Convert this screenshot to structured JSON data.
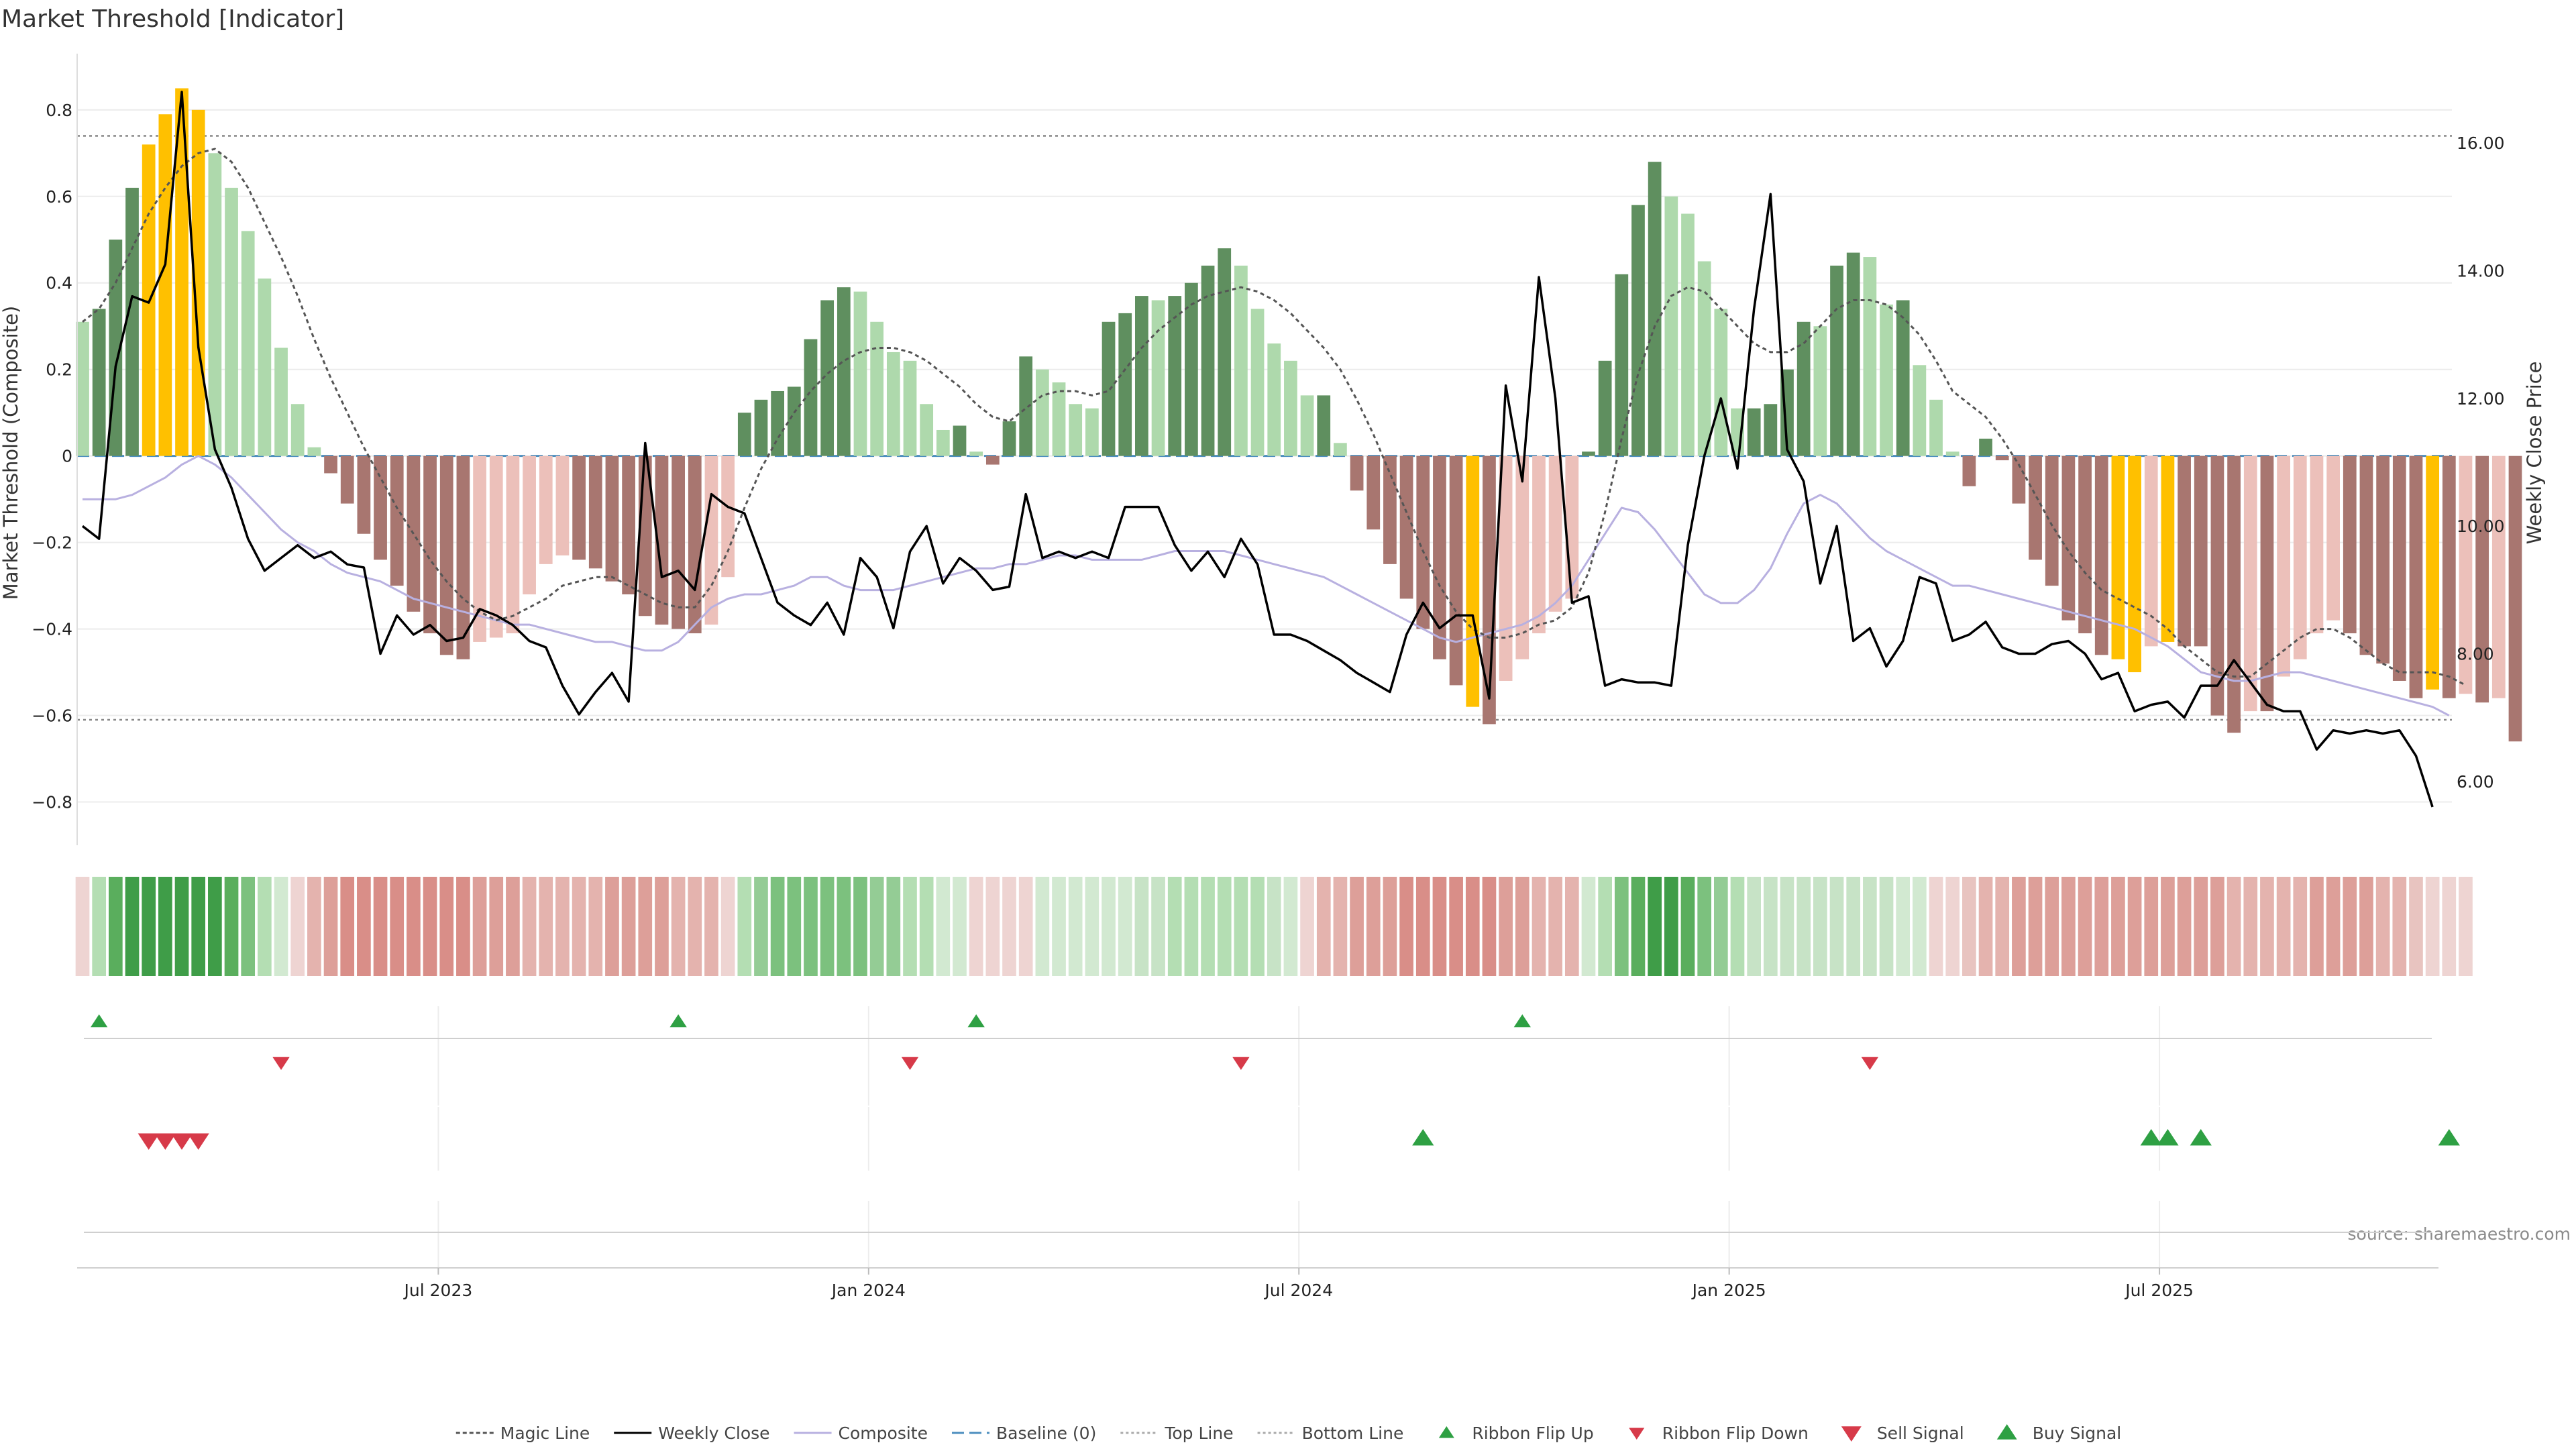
{
  "title": "Market Threshold [Indicator]",
  "source": "source: sharemaestro.com",
  "chart_data": {
    "type": "bar",
    "x_tick_labels": [
      "Jul 2023",
      "Jan 2024",
      "Jul 2024",
      "Jan 2025",
      "Jul 2025"
    ],
    "x_tick_weeks": [
      21.5,
      47.5,
      73.5,
      99.5,
      125.5
    ],
    "weeks_count": 143,
    "left_axis": {
      "label": "Market Threshold (Composite)",
      "ticks": [
        0.8,
        0.6,
        0.4,
        0.2,
        0,
        -0.2,
        -0.4,
        -0.6,
        -0.8
      ],
      "tick_labels": [
        "0.8",
        "0.6",
        "0.4",
        "0.2",
        "0",
        "−0.2",
        "−0.4",
        "−0.6",
        "−0.8"
      ],
      "ylim": [
        -0.9,
        0.93
      ]
    },
    "right_axis": {
      "label": "Weekly Close Price",
      "ticks": [
        16,
        14,
        12,
        10,
        8,
        6
      ],
      "tick_labels": [
        "16.00",
        "14.00",
        "12.00",
        "10.00",
        "8.00",
        "6.00"
      ],
      "ylim": [
        5.0,
        17.4
      ]
    },
    "top_line": 0.74,
    "bottom_line": -0.61,
    "grid": true,
    "legend_position": "bottom",
    "colors": {
      "dark_green": "#5f8f5f",
      "light_green": "#aed9ac",
      "dark_red": "#a87670",
      "light_red": "#ecc0ba",
      "extreme": "#ffc000",
      "magic": "#555555",
      "close": "#000000",
      "composite": "#b8b0e0",
      "baseline": "#4d8fbf",
      "buy": "#2ea043",
      "sell": "#d73a49"
    },
    "composite_bars": [
      0.31,
      0.34,
      0.5,
      0.62,
      0.72,
      0.79,
      0.85,
      0.8,
      0.7,
      0.62,
      0.52,
      0.41,
      0.25,
      0.12,
      0.02,
      -0.04,
      -0.11,
      -0.18,
      -0.24,
      -0.3,
      -0.36,
      -0.41,
      -0.46,
      -0.47,
      -0.43,
      -0.42,
      -0.41,
      -0.32,
      -0.25,
      -0.23,
      -0.24,
      -0.26,
      -0.29,
      -0.32,
      -0.37,
      -0.39,
      -0.4,
      -0.41,
      -0.39,
      -0.28,
      0.1,
      0.13,
      0.15,
      0.16,
      0.27,
      0.36,
      0.39,
      0.38,
      0.31,
      0.24,
      0.22,
      0.12,
      0.06,
      0.07,
      0.01,
      -0.02,
      0.08,
      0.23,
      0.2,
      0.17,
      0.12,
      0.11,
      0.31,
      0.33,
      0.37,
      0.36,
      0.37,
      0.4,
      0.44,
      0.48,
      0.44,
      0.34,
      0.26,
      0.22,
      0.14,
      0.14,
      0.03,
      -0.08,
      -0.17,
      -0.25,
      -0.33,
      -0.4,
      -0.47,
      -0.53,
      -0.58,
      -0.62,
      -0.52,
      -0.47,
      -0.41,
      -0.36,
      -0.33,
      0.01,
      0.22,
      0.42,
      0.58,
      0.68,
      0.6,
      0.56,
      0.45,
      0.34,
      0.11,
      0.11,
      0.12,
      0.2,
      0.31,
      0.3,
      0.44,
      0.47,
      0.46,
      0.35,
      0.36,
      0.21,
      0.13,
      0.01,
      -0.07,
      0.04,
      -0.01,
      -0.11,
      -0.24,
      -0.3,
      -0.38,
      -0.41,
      -0.46,
      -0.47,
      -0.5,
      -0.44,
      -0.43,
      -0.44,
      -0.44,
      -0.6,
      -0.64,
      -0.59,
      -0.59,
      -0.51,
      -0.47,
      -0.41,
      -0.38,
      -0.41,
      -0.46,
      -0.48,
      -0.52,
      -0.56,
      -0.54,
      -0.56,
      -0.55,
      -0.57,
      -0.56,
      -0.66
    ],
    "extreme_weeks": [
      4,
      5,
      6,
      7,
      84,
      123,
      124,
      126,
      142
    ],
    "weekly_close": [
      10.0,
      9.8,
      12.5,
      13.6,
      13.5,
      14.1,
      16.8,
      12.8,
      11.2,
      10.6,
      9.8,
      9.3,
      9.5,
      9.7,
      9.5,
      9.6,
      9.4,
      9.35,
      8.0,
      8.6,
      8.3,
      8.45,
      8.2,
      8.25,
      8.7,
      8.6,
      8.45,
      8.2,
      8.1,
      7.5,
      7.05,
      7.4,
      7.7,
      7.25,
      11.3,
      9.2,
      9.3,
      9.0,
      10.5,
      10.3,
      10.2,
      9.5,
      8.8,
      8.6,
      8.45,
      8.8,
      8.3,
      9.5,
      9.2,
      8.4,
      9.6,
      10.0,
      9.1,
      9.5,
      9.3,
      9.0,
      9.05,
      10.5,
      9.5,
      9.6,
      9.5,
      9.6,
      9.5,
      10.3,
      10.3,
      10.3,
      9.7,
      9.3,
      9.6,
      9.2,
      9.8,
      9.4,
      8.3,
      8.3,
      8.2,
      8.05,
      7.9,
      7.7,
      7.55,
      7.4,
      8.3,
      8.8,
      8.4,
      8.6,
      8.6,
      7.3,
      12.2,
      10.7,
      13.9,
      12.0,
      8.8,
      8.9,
      7.5,
      7.6,
      7.55,
      7.55,
      7.5,
      9.7,
      11.1,
      12.0,
      10.9,
      13.4,
      15.2,
      11.2,
      10.7,
      9.1,
      10.0,
      8.2,
      8.4,
      7.8,
      8.2,
      9.2,
      9.1,
      8.2,
      8.3,
      8.5,
      8.1,
      8.0,
      8.0,
      8.15,
      8.2,
      8.0,
      7.6,
      7.7,
      7.1,
      7.2,
      7.25,
      7.0,
      7.5,
      7.5,
      7.9,
      7.55,
      7.2,
      7.1,
      7.1,
      6.5,
      6.8,
      6.75,
      6.8,
      6.75,
      6.8,
      6.4,
      5.6
    ],
    "composite_line": [
      -0.1,
      -0.1,
      -0.1,
      -0.09,
      -0.07,
      -0.05,
      -0.02,
      0,
      -0.02,
      -0.05,
      -0.09,
      -0.13,
      -0.17,
      -0.2,
      -0.22,
      -0.25,
      -0.27,
      -0.28,
      -0.29,
      -0.31,
      -0.33,
      -0.34,
      -0.35,
      -0.36,
      -0.37,
      -0.38,
      -0.39,
      -0.39,
      -0.4,
      -0.41,
      -0.42,
      -0.43,
      -0.43,
      -0.44,
      -0.45,
      -0.45,
      -0.43,
      -0.39,
      -0.35,
      -0.33,
      -0.32,
      -0.32,
      -0.31,
      -0.3,
      -0.28,
      -0.28,
      -0.3,
      -0.31,
      -0.31,
      -0.31,
      -0.3,
      -0.29,
      -0.28,
      -0.27,
      -0.26,
      -0.26,
      -0.25,
      -0.25,
      -0.24,
      -0.23,
      -0.23,
      -0.24,
      -0.24,
      -0.24,
      -0.24,
      -0.23,
      -0.22,
      -0.22,
      -0.22,
      -0.22,
      -0.23,
      -0.24,
      -0.25,
      -0.26,
      -0.27,
      -0.28,
      -0.3,
      -0.32,
      -0.34,
      -0.36,
      -0.38,
      -0.4,
      -0.42,
      -0.43,
      -0.42,
      -0.41,
      -0.4,
      -0.39,
      -0.37,
      -0.34,
      -0.3,
      -0.24,
      -0.18,
      -0.12,
      -0.13,
      -0.17,
      -0.22,
      -0.27,
      -0.32,
      -0.34,
      -0.34,
      -0.31,
      -0.26,
      -0.18,
      -0.11,
      -0.09,
      -0.11,
      -0.15,
      -0.19,
      -0.22,
      -0.24,
      -0.26,
      -0.28,
      -0.3,
      -0.3,
      -0.31,
      -0.32,
      -0.33,
      -0.34,
      -0.35,
      -0.36,
      -0.37,
      -0.38,
      -0.39,
      -0.4,
      -0.42,
      -0.44,
      -0.47,
      -0.5,
      -0.51,
      -0.52,
      -0.52,
      -0.51,
      -0.5,
      -0.5,
      -0.51,
      -0.52,
      -0.53,
      -0.54,
      -0.55,
      -0.56,
      -0.57,
      -0.58,
      -0.6
    ],
    "magic_line": [
      0.31,
      0.34,
      0.4,
      0.48,
      0.56,
      0.62,
      0.67,
      0.7,
      0.71,
      0.68,
      0.62,
      0.54,
      0.46,
      0.37,
      0.27,
      0.18,
      0.1,
      0.02,
      -0.05,
      -0.12,
      -0.18,
      -0.24,
      -0.29,
      -0.33,
      -0.36,
      -0.38,
      -0.37,
      -0.35,
      -0.33,
      -0.3,
      -0.29,
      -0.28,
      -0.28,
      -0.3,
      -0.32,
      -0.34,
      -0.35,
      -0.35,
      -0.3,
      -0.22,
      -0.12,
      -0.03,
      0.04,
      0.1,
      0.15,
      0.19,
      0.22,
      0.24,
      0.25,
      0.25,
      0.24,
      0.22,
      0.19,
      0.16,
      0.12,
      0.09,
      0.08,
      0.11,
      0.14,
      0.15,
      0.15,
      0.14,
      0.15,
      0.2,
      0.25,
      0.29,
      0.32,
      0.35,
      0.37,
      0.38,
      0.39,
      0.38,
      0.36,
      0.33,
      0.29,
      0.25,
      0.2,
      0.13,
      0.05,
      -0.04,
      -0.13,
      -0.22,
      -0.3,
      -0.36,
      -0.4,
      -0.42,
      -0.42,
      -0.41,
      -0.39,
      -0.38,
      -0.35,
      -0.27,
      -0.13,
      0.04,
      0.19,
      0.3,
      0.37,
      0.39,
      0.38,
      0.34,
      0.3,
      0.26,
      0.24,
      0.24,
      0.26,
      0.3,
      0.34,
      0.36,
      0.36,
      0.35,
      0.32,
      0.28,
      0.22,
      0.15,
      0.12,
      0.09,
      0.04,
      -0.02,
      -0.09,
      -0.16,
      -0.22,
      -0.27,
      -0.31,
      -0.33,
      -0.35,
      -0.37,
      -0.4,
      -0.44,
      -0.47,
      -0.5,
      -0.51,
      -0.51,
      -0.48,
      -0.45,
      -0.42,
      -0.4,
      -0.4,
      -0.42,
      -0.45,
      -0.48,
      -0.5,
      -0.5,
      -0.5,
      -0.51,
      -0.53
    ],
    "ribbon_colors": [
      "#eed4d2",
      "#b4deb3",
      "#5aae5d",
      "#3f9d48",
      "#3f9d48",
      "#3f9d48",
      "#3f9d48",
      "#3f9d48",
      "#3f9d48",
      "#5aae5d",
      "#7cc17e",
      "#b4deb3",
      "#d2e9d1",
      "#eed4d2",
      "#e4b3ae",
      "#dd9f99",
      "#d98e88",
      "#d98e88",
      "#d98e88",
      "#d98e88",
      "#d98e88",
      "#d98e88",
      "#d98e88",
      "#d98e88",
      "#dd9f99",
      "#dd9f99",
      "#dd9f99",
      "#e4b3ae",
      "#e4b3ae",
      "#e4b3ae",
      "#e4b3ae",
      "#e4b3ae",
      "#dd9f99",
      "#dd9f99",
      "#dd9f99",
      "#dd9f99",
      "#e4b3ae",
      "#e4b3ae",
      "#e4b3ae",
      "#eed4d2",
      "#b4deb3",
      "#94cc95",
      "#7cc17e",
      "#7cc17e",
      "#7cc17e",
      "#7cc17e",
      "#7cc17e",
      "#7cc17e",
      "#94cc95",
      "#94cc95",
      "#b4deb3",
      "#b4deb3",
      "#d2e9d1",
      "#d2e9d1",
      "#eed4d2",
      "#eed4d2",
      "#eed4d2",
      "#eed4d2",
      "#d2e9d1",
      "#d2e9d1",
      "#d2e9d1",
      "#d2e9d1",
      "#d2e9d1",
      "#d2e9d1",
      "#c7e3c6",
      "#c7e3c6",
      "#b4deb3",
      "#b4deb3",
      "#b4deb3",
      "#b4deb3",
      "#b4deb3",
      "#b4deb3",
      "#c7e3c6",
      "#d2e9d1",
      "#eed4d2",
      "#e4b3ae",
      "#e4b3ae",
      "#dd9f99",
      "#dd9f99",
      "#dd9f99",
      "#d98e88",
      "#d98e88",
      "#d98e88",
      "#d98e88",
      "#d98e88",
      "#d98e88",
      "#dd9f99",
      "#dd9f99",
      "#e4b3ae",
      "#e4b3ae",
      "#e4b3ae",
      "#d2e9d1",
      "#b4deb3",
      "#7cc17e",
      "#5aae5d",
      "#3f9d48",
      "#3f9d48",
      "#5aae5d",
      "#7cc17e",
      "#94cc95",
      "#b4deb3",
      "#c7e3c6",
      "#c7e3c6",
      "#c7e3c6",
      "#c7e3c6",
      "#c7e3c6",
      "#c7e3c6",
      "#c7e3c6",
      "#c7e3c6",
      "#c7e3c6",
      "#d2e9d1",
      "#d2e9d1",
      "#eed4d2",
      "#eed4d2",
      "#e8c4c0",
      "#e4b3ae",
      "#e4b3ae",
      "#dd9f99",
      "#dd9f99",
      "#dd9f99",
      "#dd9f99",
      "#dd9f99",
      "#dd9f99",
      "#dd9f99",
      "#dd9f99",
      "#dd9f99",
      "#dd9f99",
      "#dd9f99",
      "#dd9f99",
      "#dd9f99",
      "#e4b3ae",
      "#e4b3ae",
      "#e4b3ae",
      "#e4b3ae",
      "#e4b3ae",
      "#dd9f99",
      "#dd9f99",
      "#dd9f99",
      "#dd9f99",
      "#e4b3ae",
      "#e4b3ae",
      "#e8c4c0",
      "#eed4d2",
      "#eed4d2",
      "#eed4d2"
    ],
    "ribbon_flip_up_weeks": [
      1,
      36,
      54,
      87
    ],
    "ribbon_flip_down_weeks": [
      12,
      50,
      70,
      108
    ],
    "sell_signal_weeks": [
      4,
      5,
      6,
      7
    ],
    "buy_signal_weeks": [
      81,
      125,
      126,
      128,
      143
    ]
  },
  "legend": [
    {
      "label": "Magic Line",
      "marker": "line",
      "color": "#555555",
      "dash": "6,4"
    },
    {
      "label": "Weekly Close",
      "marker": "line",
      "color": "#000000",
      "dash": ""
    },
    {
      "label": "Composite",
      "marker": "line",
      "color": "#b8b0e0",
      "dash": ""
    },
    {
      "label": "Baseline (0)",
      "marker": "line",
      "color": "#4d8fbf",
      "dash": "18,8"
    },
    {
      "label": "Top Line",
      "marker": "line",
      "color": "#aaaaaa",
      "dash": "4,4"
    },
    {
      "label": "Bottom Line",
      "marker": "line",
      "color": "#aaaaaa",
      "dash": "4,4"
    },
    {
      "label": "Ribbon Flip Up",
      "marker": "tri-up-small",
      "color": "#2ea043",
      "dash": ""
    },
    {
      "label": "Ribbon Flip Down",
      "marker": "tri-down-small",
      "color": "#d73a49",
      "dash": ""
    },
    {
      "label": "Sell Signal",
      "marker": "tri-down",
      "color": "#d73a49",
      "dash": ""
    },
    {
      "label": "Buy Signal",
      "marker": "tri-up",
      "color": "#2ea043",
      "dash": ""
    }
  ]
}
